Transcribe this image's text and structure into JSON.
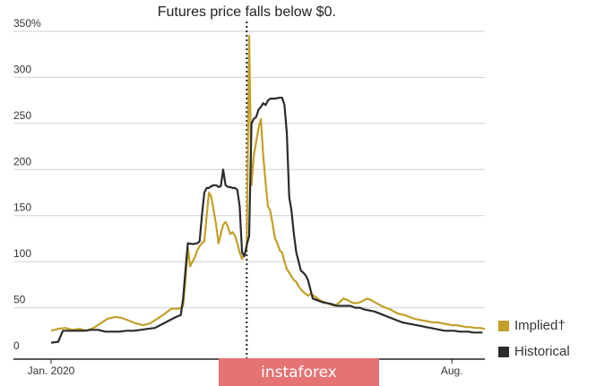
{
  "chart_data": {
    "type": "line",
    "annotation": "Futures price falls below $0.",
    "annotation_x": 83,
    "xlim": [
      0,
      184
    ],
    "ylim": [
      0,
      350
    ],
    "y_ticks": [
      {
        "value": 0,
        "label": "0"
      },
      {
        "value": 50,
        "label": "50"
      },
      {
        "value": 100,
        "label": "100"
      },
      {
        "value": 150,
        "label": "150"
      },
      {
        "value": 200,
        "label": "200"
      },
      {
        "value": 250,
        "label": "250"
      },
      {
        "value": 300,
        "label": "300"
      },
      {
        "value": 350,
        "label": "350%"
      }
    ],
    "x_ticks": [
      {
        "value": 0,
        "label": "Jan. 2020"
      },
      {
        "value": 170,
        "label": "Aug."
      }
    ],
    "grid": true,
    "legend_position": "bottom-right",
    "series": [
      {
        "name": "Implied†",
        "color": "#c2a02a",
        "points": [
          [
            0,
            25
          ],
          [
            3,
            27
          ],
          [
            6,
            28
          ],
          [
            9,
            26
          ],
          [
            12,
            27
          ],
          [
            15,
            25
          ],
          [
            18,
            28
          ],
          [
            21,
            33
          ],
          [
            24,
            38
          ],
          [
            27,
            40
          ],
          [
            30,
            39
          ],
          [
            33,
            36
          ],
          [
            36,
            33
          ],
          [
            39,
            31
          ],
          [
            42,
            33
          ],
          [
            45,
            38
          ],
          [
            48,
            43
          ],
          [
            51,
            49
          ],
          [
            54,
            49
          ],
          [
            55,
            50
          ],
          [
            56,
            52
          ],
          [
            57,
            80
          ],
          [
            58,
            115
          ],
          [
            59,
            95
          ],
          [
            61,
            105
          ],
          [
            62,
            112
          ],
          [
            63,
            117
          ],
          [
            64,
            120
          ],
          [
            65,
            122
          ],
          [
            66,
            150
          ],
          [
            67,
            175
          ],
          [
            68,
            170
          ],
          [
            69,
            155
          ],
          [
            70,
            140
          ],
          [
            71,
            120
          ],
          [
            72,
            130
          ],
          [
            73,
            140
          ],
          [
            74,
            143
          ],
          [
            75,
            138
          ],
          [
            76,
            130
          ],
          [
            77,
            132
          ],
          [
            78,
            128
          ],
          [
            79,
            120
          ],
          [
            80,
            110
          ],
          [
            81,
            103
          ],
          [
            82,
            108
          ],
          [
            83,
            115
          ],
          [
            84,
            345
          ],
          [
            85,
            183
          ],
          [
            86,
            215
          ],
          [
            87,
            230
          ],
          [
            88,
            245
          ],
          [
            89,
            255
          ],
          [
            90,
            215
          ],
          [
            91,
            185
          ],
          [
            92,
            160
          ],
          [
            93,
            155
          ],
          [
            94,
            140
          ],
          [
            95,
            125
          ],
          [
            96,
            120
          ],
          [
            97,
            112
          ],
          [
            98,
            110
          ],
          [
            99,
            100
          ],
          [
            100,
            92
          ],
          [
            101,
            88
          ],
          [
            102,
            84
          ],
          [
            103,
            80
          ],
          [
            104,
            78
          ],
          [
            105,
            73
          ],
          [
            106,
            70
          ],
          [
            107,
            67
          ],
          [
            108,
            65
          ],
          [
            109,
            63
          ],
          [
            110,
            65
          ],
          [
            112,
            62
          ],
          [
            114,
            58
          ],
          [
            116,
            56
          ],
          [
            118,
            54
          ],
          [
            120,
            52
          ],
          [
            122,
            55
          ],
          [
            124,
            60
          ],
          [
            126,
            58
          ],
          [
            128,
            55
          ],
          [
            130,
            55
          ],
          [
            132,
            57
          ],
          [
            134,
            60
          ],
          [
            136,
            58
          ],
          [
            138,
            55
          ],
          [
            140,
            52
          ],
          [
            142,
            50
          ],
          [
            144,
            48
          ],
          [
            146,
            45
          ],
          [
            148,
            43
          ],
          [
            150,
            42
          ],
          [
            152,
            40
          ],
          [
            154,
            38
          ],
          [
            156,
            37
          ],
          [
            158,
            36
          ],
          [
            160,
            35
          ],
          [
            162,
            34
          ],
          [
            164,
            34
          ],
          [
            166,
            33
          ],
          [
            168,
            32
          ],
          [
            170,
            31
          ],
          [
            172,
            31
          ],
          [
            174,
            30
          ],
          [
            176,
            29
          ],
          [
            178,
            29
          ],
          [
            180,
            28
          ],
          [
            182,
            28
          ],
          [
            184,
            27
          ]
        ]
      },
      {
        "name": "Historical",
        "color": "#2b2b2b",
        "points": [
          [
            0,
            12
          ],
          [
            3,
            13
          ],
          [
            5,
            25
          ],
          [
            8,
            25
          ],
          [
            11,
            25
          ],
          [
            14,
            25
          ],
          [
            17,
            26
          ],
          [
            20,
            26
          ],
          [
            23,
            24
          ],
          [
            26,
            24
          ],
          [
            29,
            24
          ],
          [
            32,
            25
          ],
          [
            35,
            25
          ],
          [
            38,
            26
          ],
          [
            41,
            27
          ],
          [
            44,
            28
          ],
          [
            47,
            32
          ],
          [
            50,
            36
          ],
          [
            53,
            40
          ],
          [
            55,
            42
          ],
          [
            56,
            60
          ],
          [
            57,
            90
          ],
          [
            58,
            120
          ],
          [
            60,
            119
          ],
          [
            62,
            120
          ],
          [
            63,
            122
          ],
          [
            64,
            150
          ],
          [
            65,
            175
          ],
          [
            66,
            180
          ],
          [
            67,
            180
          ],
          [
            68,
            182
          ],
          [
            69,
            183
          ],
          [
            70,
            183
          ],
          [
            71,
            181
          ],
          [
            72,
            182
          ],
          [
            73,
            200
          ],
          [
            74,
            183
          ],
          [
            75,
            181
          ],
          [
            76,
            181
          ],
          [
            77,
            180
          ],
          [
            78,
            180
          ],
          [
            79,
            178
          ],
          [
            80,
            160
          ],
          [
            81,
            110
          ],
          [
            82,
            106
          ],
          [
            83,
            118
          ],
          [
            84,
            128
          ],
          [
            85,
            250
          ],
          [
            86,
            255
          ],
          [
            87,
            257
          ],
          [
            88,
            265
          ],
          [
            89,
            268
          ],
          [
            90,
            272
          ],
          [
            91,
            270
          ],
          [
            92,
            275
          ],
          [
            93,
            277
          ],
          [
            95,
            277
          ],
          [
            97,
            278
          ],
          [
            98,
            278
          ],
          [
            99,
            270
          ],
          [
            100,
            240
          ],
          [
            101,
            170
          ],
          [
            102,
            155
          ],
          [
            103,
            130
          ],
          [
            104,
            110
          ],
          [
            105,
            100
          ],
          [
            106,
            90
          ],
          [
            107,
            88
          ],
          [
            108,
            85
          ],
          [
            109,
            80
          ],
          [
            110,
            70
          ],
          [
            111,
            60
          ],
          [
            113,
            58
          ],
          [
            115,
            56
          ],
          [
            117,
            55
          ],
          [
            119,
            54
          ],
          [
            121,
            52
          ],
          [
            123,
            52
          ],
          [
            125,
            52
          ],
          [
            127,
            52
          ],
          [
            129,
            50
          ],
          [
            131,
            50
          ],
          [
            133,
            48
          ],
          [
            135,
            47
          ],
          [
            137,
            46
          ],
          [
            139,
            44
          ],
          [
            141,
            42
          ],
          [
            143,
            40
          ],
          [
            145,
            38
          ],
          [
            147,
            36
          ],
          [
            149,
            34
          ],
          [
            151,
            33
          ],
          [
            153,
            32
          ],
          [
            155,
            31
          ],
          [
            157,
            30
          ],
          [
            159,
            29
          ],
          [
            161,
            28
          ],
          [
            163,
            27
          ],
          [
            165,
            26
          ],
          [
            167,
            25
          ],
          [
            169,
            25
          ],
          [
            171,
            25
          ],
          [
            173,
            24
          ],
          [
            175,
            24
          ],
          [
            177,
            24
          ],
          [
            179,
            23
          ],
          [
            181,
            23
          ],
          [
            183,
            23
          ]
        ]
      }
    ]
  },
  "legend": {
    "implied_label": "Implied†",
    "historical_label": "Historical",
    "implied_color": "#c2a02a",
    "historical_color": "#2b2b2b"
  },
  "watermark": "instaforex"
}
